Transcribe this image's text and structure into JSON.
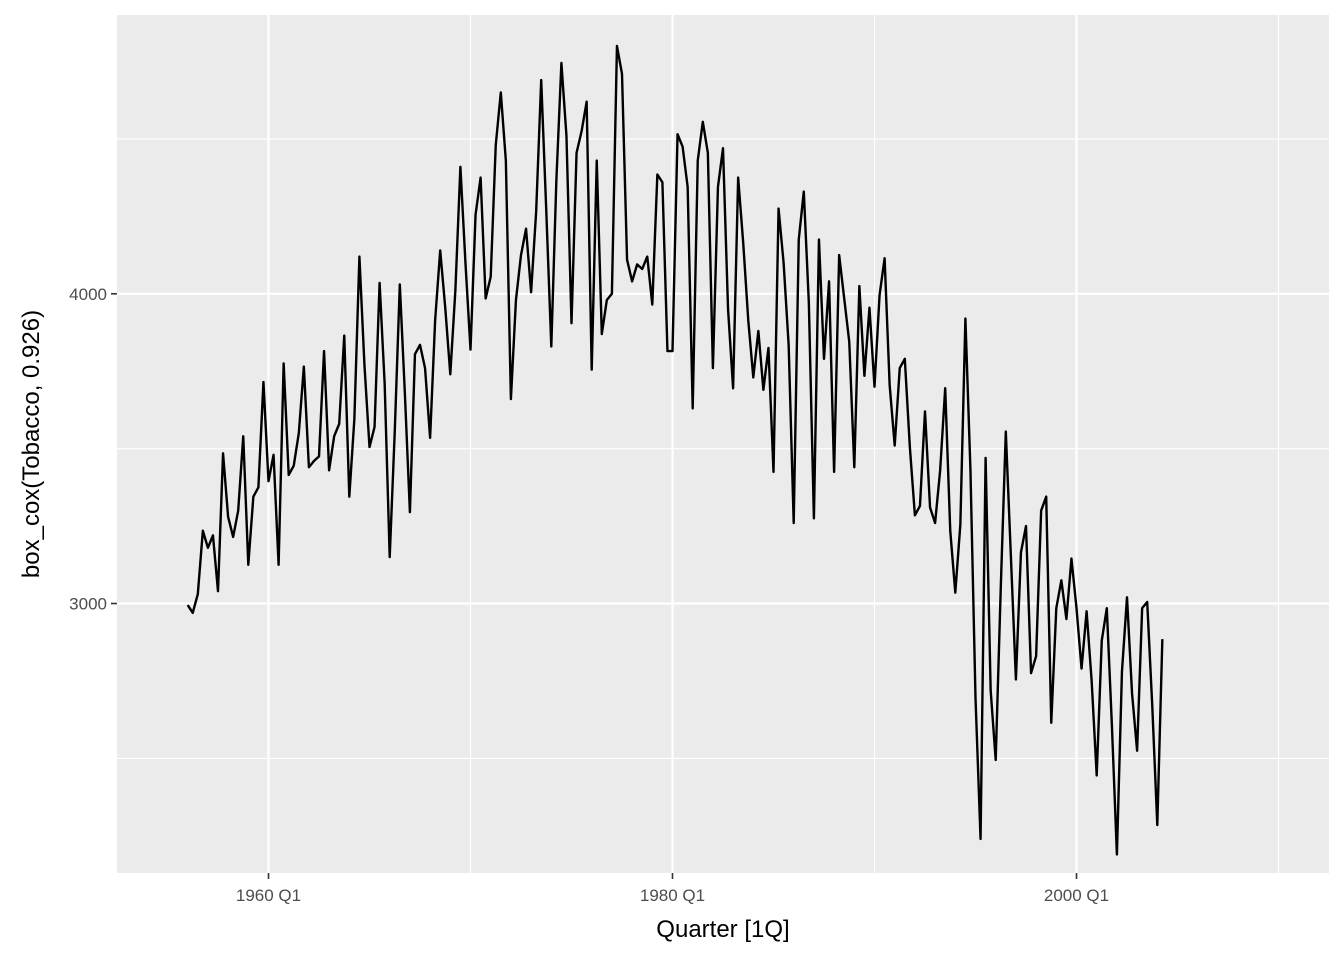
{
  "chart_data": {
    "type": "line",
    "title": "",
    "xlabel": "Quarter [1Q]",
    "ylabel": "box_cox(Tobacco, 0.926)",
    "x_start": "1956 Q1",
    "x_tick_labels": [
      "1960 Q1",
      "1980 Q1",
      "2000 Q1"
    ],
    "y_ticks": [
      3000,
      4000
    ],
    "y_tick_labels": [
      "3000",
      "4000"
    ],
    "ylim": [
      2130,
      4900
    ],
    "xlim": [
      "1952 Q3",
      "2012 Q3"
    ],
    "grid": true,
    "legend": "none",
    "series": [
      {
        "color": "#000000",
        "values": [
          2995,
          2970,
          3030,
          3235,
          3180,
          3220,
          3040,
          3485,
          3280,
          3215,
          3300,
          3540,
          3125,
          3345,
          3375,
          3715,
          3395,
          3480,
          3125,
          3775,
          3415,
          3445,
          3550,
          3765,
          3440,
          3460,
          3475,
          3815,
          3430,
          3540,
          3580,
          3865,
          3345,
          3595,
          4120,
          3770,
          3505,
          3570,
          4035,
          3710,
          3150,
          3555,
          4030,
          3680,
          3295,
          3805,
          3835,
          3760,
          3535,
          3915,
          4140,
          3955,
          3740,
          4010,
          4410,
          4100,
          3820,
          4255,
          4375,
          3985,
          4055,
          4480,
          4650,
          4430,
          3660,
          3980,
          4125,
          4210,
          4005,
          4265,
          4690,
          4270,
          3830,
          4365,
          4745,
          4510,
          3905,
          4455,
          4525,
          4620,
          3755,
          4430,
          3870,
          3980,
          4000,
          4800,
          4710,
          4110,
          4040,
          4095,
          4080,
          4120,
          3965,
          4385,
          4360,
          3815,
          3815,
          4515,
          4475,
          4345,
          3630,
          4430,
          4555,
          4455,
          3760,
          4345,
          4470,
          3950,
          3695,
          4375,
          4165,
          3915,
          3730,
          3880,
          3690,
          3825,
          3425,
          4275,
          4100,
          3835,
          3260,
          4175,
          4330,
          3970,
          3275,
          4175,
          3790,
          4040,
          3425,
          4125,
          3985,
          3845,
          3440,
          4025,
          3735,
          3955,
          3700,
          3995,
          4115,
          3705,
          3510,
          3760,
          3790,
          3505,
          3285,
          3315,
          3620,
          3310,
          3260,
          3430,
          3695,
          3235,
          3035,
          3255,
          3920,
          3430,
          2695,
          2240,
          3470,
          2720,
          2495,
          3050,
          3555,
          3155,
          2755,
          3165,
          3250,
          2775,
          2830,
          3300,
          3345,
          2615,
          2985,
          3075,
          2950,
          3145,
          2985,
          2790,
          2975,
          2750,
          2445,
          2880,
          2985,
          2610,
          2190,
          2780,
          3020,
          2710,
          2525,
          2985,
          3005,
          2670,
          2285,
          2885
        ]
      }
    ]
  }
}
